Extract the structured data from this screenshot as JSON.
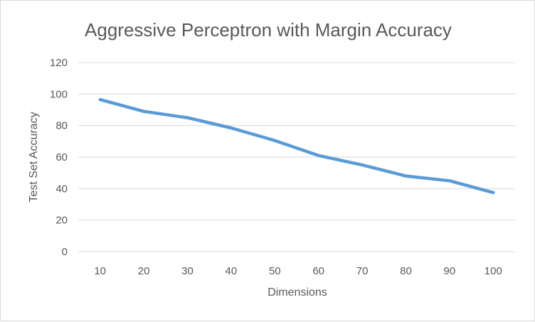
{
  "chart_data": {
    "type": "line",
    "title": "Aggressive Perceptron with Margin Accuracy",
    "xlabel": "Dimensions",
    "ylabel": "Test Set Accuracy",
    "categories": [
      "10",
      "20",
      "30",
      "40",
      "50",
      "60",
      "70",
      "80",
      "90",
      "100"
    ],
    "series": [
      {
        "values": [
          96.5,
          89,
          85,
          78.5,
          70.5,
          61,
          55,
          48,
          45,
          37.5
        ],
        "color": "#5b9bd5"
      }
    ],
    "ylim": [
      0,
      120
    ],
    "yticks": [
      "0",
      "20",
      "40",
      "60",
      "80",
      "100",
      "120"
    ],
    "grid": true,
    "legend": "none"
  }
}
